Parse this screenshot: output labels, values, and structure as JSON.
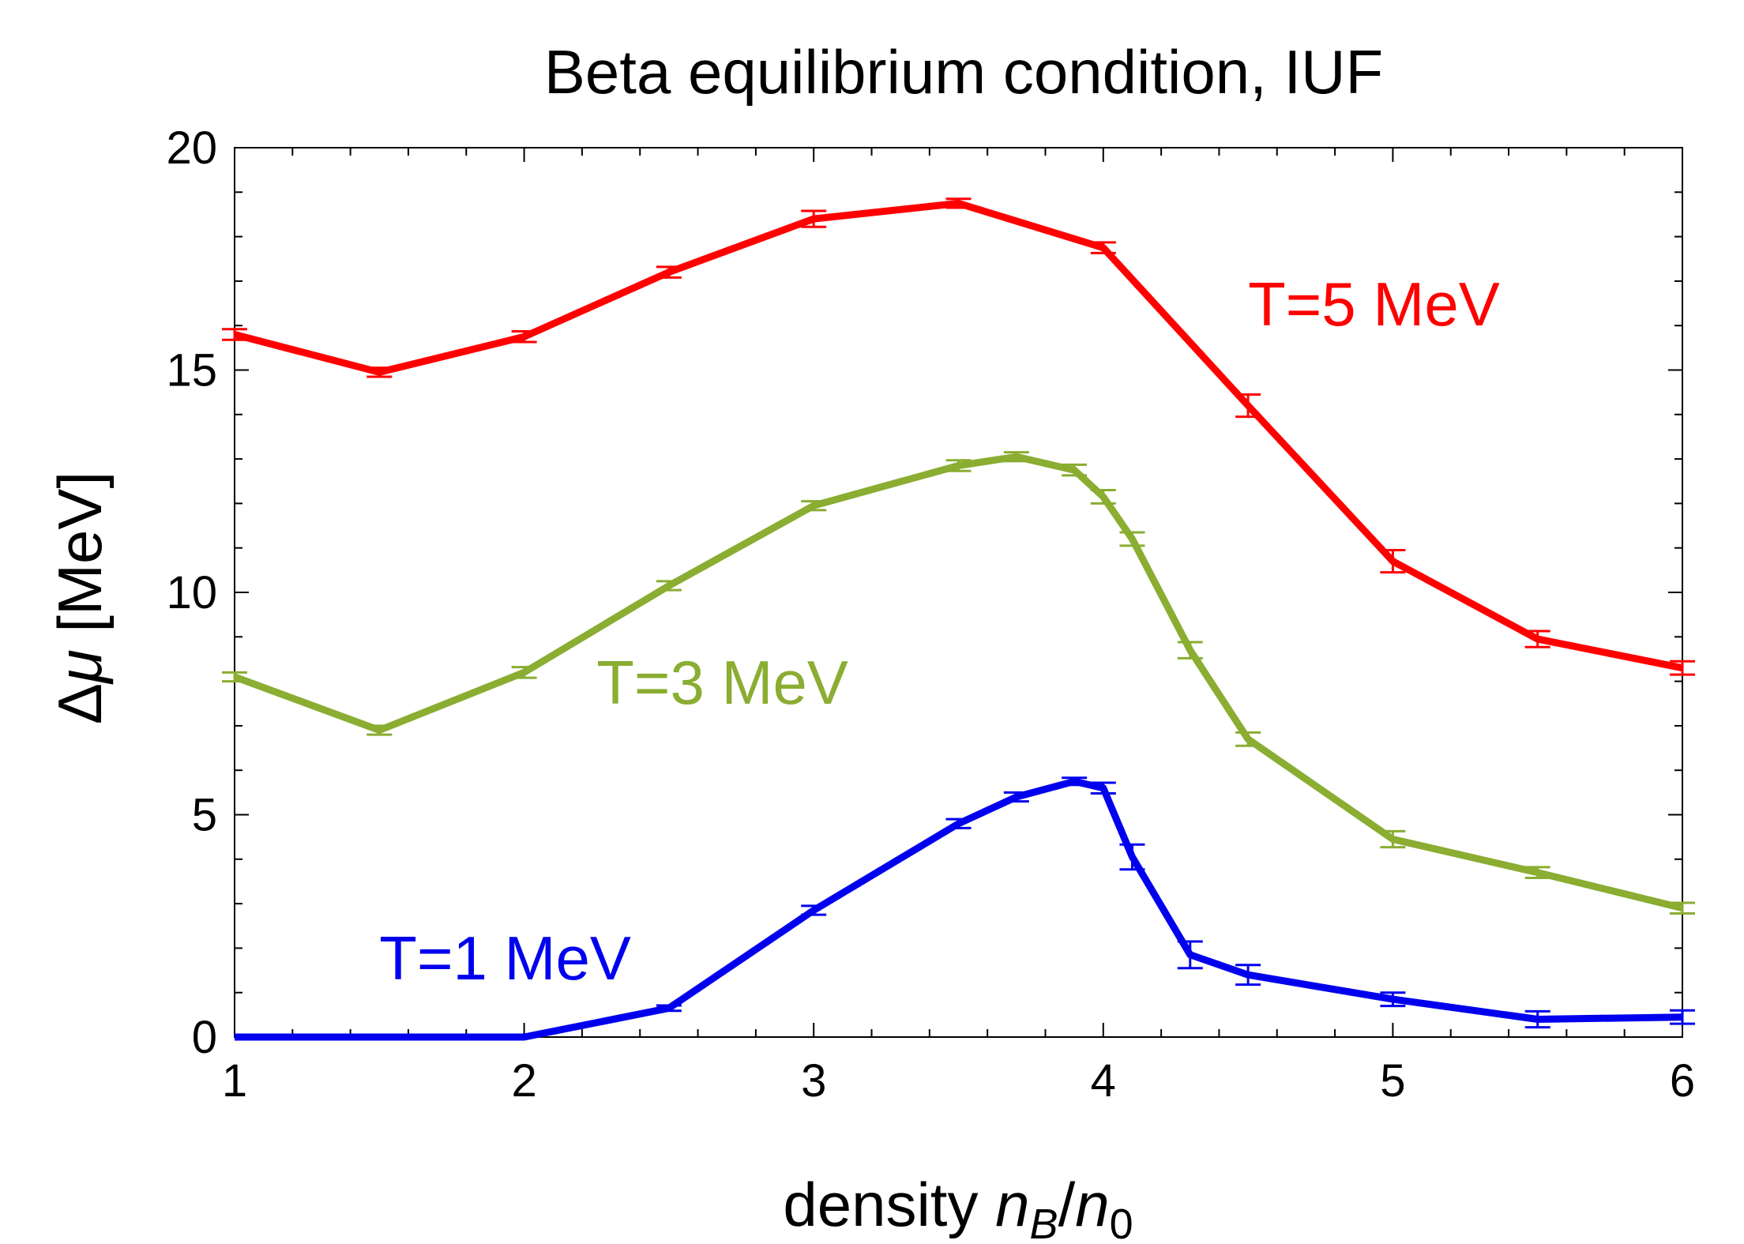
{
  "chart_data": {
    "type": "line",
    "title": "Beta equilibrium condition, IUF",
    "xlabel": {
      "prefix": "density ",
      "var1": "n",
      "sub1": "B",
      "slash": "/",
      "var2": "n",
      "sub2": "0"
    },
    "ylabel": {
      "prefix": "Δ",
      "var": "μ",
      "suffix": " [MeV]"
    },
    "xlim": [
      1,
      6
    ],
    "ylim": [
      0,
      20
    ],
    "xticks": [
      1,
      2,
      3,
      4,
      5,
      6
    ],
    "yticks": [
      0,
      5,
      10,
      15,
      20
    ],
    "grid": false,
    "series": [
      {
        "name": "T=5 MeV",
        "color": "#ff0000",
        "label_pos": [
          4.5,
          16.0
        ],
        "x": [
          1,
          1.5,
          2,
          2.5,
          3,
          3.5,
          4,
          4.5,
          5,
          5.5,
          6
        ],
        "y": [
          15.8,
          14.95,
          15.75,
          17.2,
          18.4,
          18.75,
          17.75,
          14.2,
          10.7,
          8.95,
          8.3
        ],
        "err": [
          0.12,
          0.1,
          0.12,
          0.12,
          0.18,
          0.1,
          0.12,
          0.25,
          0.25,
          0.18,
          0.15
        ]
      },
      {
        "name": "T=3 MeV",
        "color": "#8aad32",
        "label_pos": [
          2.25,
          7.5
        ],
        "x": [
          1,
          1.5,
          2,
          2.5,
          3,
          3.5,
          3.7,
          3.9,
          4,
          4.1,
          4.3,
          4.5,
          5,
          5.5,
          6
        ],
        "y": [
          8.1,
          6.9,
          8.2,
          10.15,
          11.95,
          12.85,
          13.05,
          12.75,
          12.15,
          11.2,
          8.7,
          6.7,
          4.45,
          3.7,
          2.9
        ],
        "err": [
          0.1,
          0.1,
          0.12,
          0.1,
          0.1,
          0.12,
          0.1,
          0.12,
          0.15,
          0.15,
          0.18,
          0.15,
          0.18,
          0.12,
          0.12
        ]
      },
      {
        "name": "T=1 MeV",
        "color": "#0000ee",
        "label_pos": [
          1.5,
          1.3
        ],
        "x": [
          1,
          1.5,
          2,
          2.5,
          3,
          3.5,
          3.7,
          3.9,
          4,
          4.1,
          4.3,
          4.5,
          5,
          5.5,
          6
        ],
        "y": [
          0,
          0,
          0,
          0.65,
          2.85,
          4.8,
          5.4,
          5.75,
          5.6,
          4.05,
          1.85,
          1.4,
          0.85,
          0.4,
          0.45
        ],
        "err": [
          0,
          0,
          0,
          0.06,
          0.1,
          0.1,
          0.1,
          0.08,
          0.12,
          0.28,
          0.3,
          0.22,
          0.15,
          0.18,
          0.15
        ]
      }
    ]
  }
}
